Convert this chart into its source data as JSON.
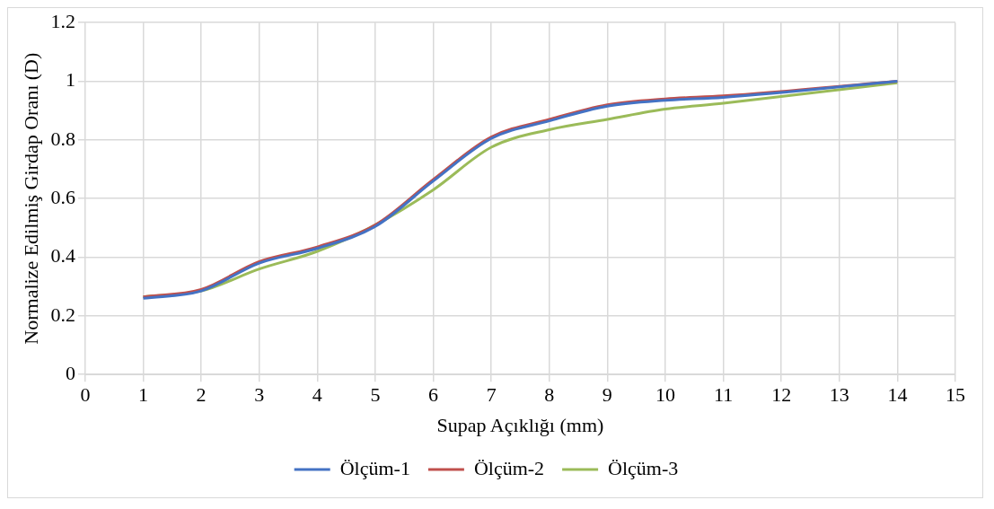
{
  "chart_data": {
    "type": "line",
    "xlabel": "Supap Açıklığı (mm)",
    "ylabel": "Normalize Edilmiş Girdap Oranı (D)",
    "x": [
      1,
      2,
      3,
      4,
      5,
      6,
      7,
      8,
      9,
      10,
      11,
      14
    ],
    "xlim": [
      0,
      15
    ],
    "xticks": [
      0,
      1,
      2,
      3,
      4,
      5,
      6,
      7,
      8,
      9,
      10,
      11,
      12,
      13,
      14,
      15
    ],
    "ylim": [
      0,
      1.2
    ],
    "yticks": [
      0,
      0.2,
      0.4,
      0.6,
      0.8,
      1,
      1.2
    ],
    "grid": true,
    "legend": "bottom",
    "marker": "none",
    "line_style": "solid",
    "series": [
      {
        "name": "Ölçüm-1",
        "color": "#4472c4",
        "values": [
          0.26,
          0.285,
          0.38,
          0.43,
          0.505,
          0.66,
          0.805,
          0.865,
          0.915,
          0.935,
          0.945,
          1.0
        ]
      },
      {
        "name": "Ölçüm-2",
        "color": "#c0504d",
        "values": [
          0.265,
          0.29,
          0.385,
          0.435,
          0.51,
          0.665,
          0.81,
          0.87,
          0.92,
          0.94,
          0.95,
          1.0
        ]
      },
      {
        "name": "Ölçüm-3",
        "color": "#9bbb59",
        "values": [
          0.265,
          0.285,
          0.36,
          0.42,
          0.51,
          0.63,
          0.775,
          0.835,
          0.87,
          0.905,
          0.925,
          0.995
        ]
      }
    ]
  }
}
